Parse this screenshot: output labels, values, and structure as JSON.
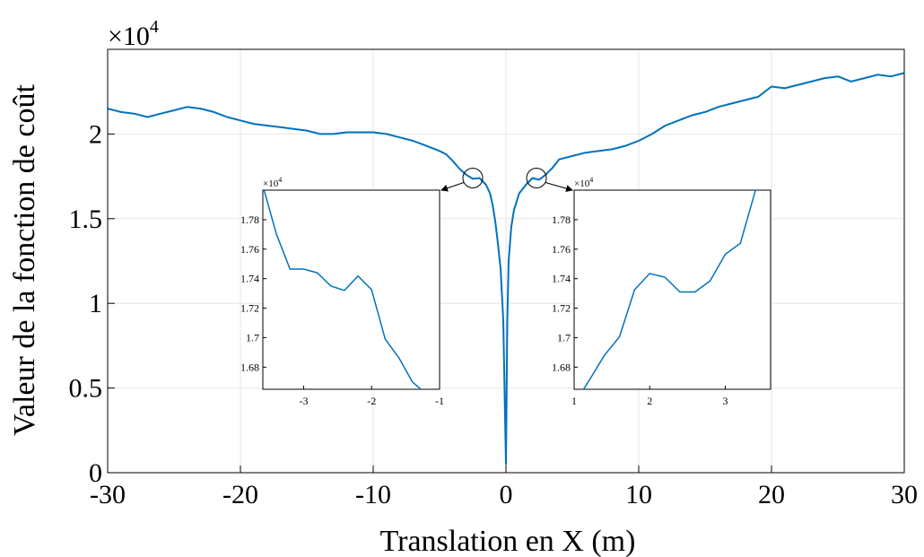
{
  "chart_data": {
    "type": "line",
    "xlabel": "Translation en X (m)",
    "ylabel": "Valeur de la fonction de coût",
    "y_multiplier": "×10",
    "y_multiplier_exp": "4",
    "xlim": [
      -30,
      30
    ],
    "ylim": [
      0,
      2.5
    ],
    "xticks": [
      "-30",
      "-20",
      "-10",
      "0",
      "10",
      "20",
      "30"
    ],
    "yticks": [
      "0",
      "0.5",
      "1",
      "1.5",
      "2"
    ],
    "grid": true,
    "color": "#0072BD",
    "series": [
      {
        "x": [
          -30,
          -29,
          -28,
          -27,
          -26,
          -25,
          -24,
          -23,
          -22,
          -21,
          -20,
          -19,
          -18,
          -17,
          -16,
          -15,
          -14,
          -13,
          -12,
          -11,
          -10,
          -9,
          -8,
          -7,
          -6,
          -5,
          -4.5,
          -4,
          -3.5,
          -3,
          -2.5,
          -2,
          -1.5,
          -1.2,
          -1,
          -0.8,
          -0.6,
          -0.4,
          -0.2,
          0,
          0.1,
          0.2,
          0.4,
          0.6,
          0.8,
          1,
          1.2,
          1.5,
          2,
          2.5,
          3,
          3.5,
          4,
          5,
          6,
          7,
          8,
          9,
          10,
          11,
          12,
          13,
          14,
          15,
          16,
          17,
          18,
          19,
          20,
          21,
          22,
          23,
          24,
          25,
          26,
          27,
          28,
          29,
          30
        ],
        "y": [
          2.15,
          2.13,
          2.12,
          2.1,
          2.12,
          2.14,
          2.16,
          2.15,
          2.13,
          2.1,
          2.08,
          2.06,
          2.05,
          2.04,
          2.03,
          2.02,
          2.0,
          2.0,
          2.01,
          2.01,
          2.01,
          2.0,
          1.98,
          1.96,
          1.93,
          1.9,
          1.88,
          1.84,
          1.795,
          1.76,
          1.735,
          1.74,
          1.7,
          1.65,
          1.58,
          1.48,
          1.35,
          1.2,
          0.9,
          0.05,
          0.9,
          1.25,
          1.45,
          1.55,
          1.6,
          1.65,
          1.67,
          1.7,
          1.74,
          1.73,
          1.76,
          1.8,
          1.85,
          1.87,
          1.89,
          1.9,
          1.91,
          1.93,
          1.96,
          2.0,
          2.05,
          2.08,
          2.11,
          2.13,
          2.16,
          2.18,
          2.2,
          2.22,
          2.28,
          2.27,
          2.29,
          2.31,
          2.33,
          2.34,
          2.31,
          2.33,
          2.35,
          2.34,
          2.36
        ]
      }
    ],
    "insets": [
      {
        "xlim": [
          -3.6,
          -1
        ],
        "ylim": [
          1.665,
          1.8
        ],
        "xticks": [
          "-3",
          "-2",
          "-1"
        ],
        "yticks": [
          "1.68",
          "1.7",
          "1.72",
          "1.74",
          "1.76",
          "1.78"
        ],
        "y_multiplier": "×10",
        "y_multiplier_exp": "4",
        "grid": false,
        "x": [
          -3.6,
          -3.4,
          -3.2,
          -3.0,
          -2.8,
          -2.6,
          -2.4,
          -2.2,
          -2.0,
          -1.8,
          -1.6,
          -1.4,
          -1.2
        ],
        "y": [
          1.803,
          1.77,
          1.7465,
          1.7465,
          1.744,
          1.735,
          1.732,
          1.7418,
          1.7325,
          1.699,
          1.6865,
          1.67,
          1.662
        ]
      },
      {
        "xlim": [
          1,
          3.6
        ],
        "ylim": [
          1.665,
          1.8
        ],
        "xticks": [
          "1",
          "2",
          "3"
        ],
        "yticks": [
          "1.68",
          "1.7",
          "1.72",
          "1.74",
          "1.76",
          "1.78"
        ],
        "y_multiplier": "×10",
        "y_multiplier_exp": "4",
        "grid": false,
        "x": [
          1.0,
          1.2,
          1.4,
          1.6,
          1.8,
          2.0,
          2.2,
          2.4,
          2.6,
          2.8,
          3.0,
          3.2,
          3.4,
          3.6
        ],
        "y": [
          1.655,
          1.671,
          1.688,
          1.7005,
          1.7325,
          1.7435,
          1.741,
          1.731,
          1.731,
          1.7385,
          1.7565,
          1.764,
          1.8,
          1.845
        ]
      }
    ]
  }
}
